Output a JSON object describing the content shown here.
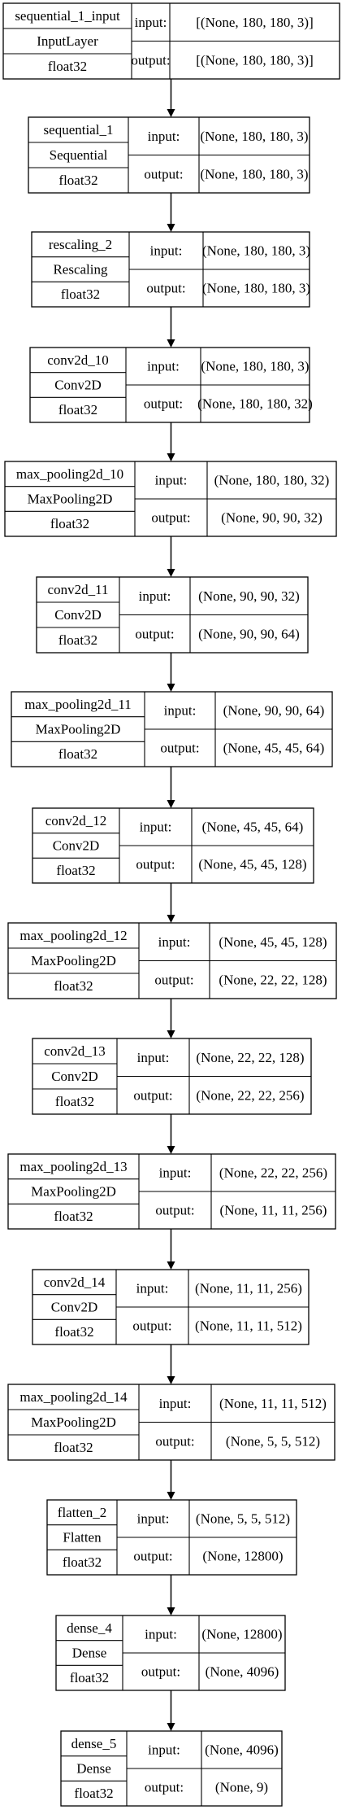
{
  "layers": [
    {
      "name": "sequential_1_input",
      "type": "InputLayer",
      "dtype": "float32",
      "input_label": "input:",
      "input": "[(None, 180, 180, 3)]",
      "output_label": "output:",
      "output": "[(None, 180, 180, 3)]"
    },
    {
      "name": "sequential_1",
      "type": "Sequential",
      "dtype": "float32",
      "input_label": "input:",
      "input": "(None, 180, 180, 3)",
      "output_label": "output:",
      "output": "(None, 180, 180, 3)"
    },
    {
      "name": "rescaling_2",
      "type": "Rescaling",
      "dtype": "float32",
      "input_label": "input:",
      "input": "(None, 180, 180, 3)",
      "output_label": "output:",
      "output": "(None, 180, 180, 3)"
    },
    {
      "name": "conv2d_10",
      "type": "Conv2D",
      "dtype": "float32",
      "input_label": "input:",
      "input": "(None, 180, 180, 3)",
      "output_label": "output:",
      "output": "(None, 180, 180, 32)"
    },
    {
      "name": "max_pooling2d_10",
      "type": "MaxPooling2D",
      "dtype": "float32",
      "input_label": "input:",
      "input": "(None, 180, 180, 32)",
      "output_label": "output:",
      "output": "(None, 90, 90, 32)"
    },
    {
      "name": "conv2d_11",
      "type": "Conv2D",
      "dtype": "float32",
      "input_label": "input:",
      "input": "(None, 90, 90, 32)",
      "output_label": "output:",
      "output": "(None, 90, 90, 64)"
    },
    {
      "name": "max_pooling2d_11",
      "type": "MaxPooling2D",
      "dtype": "float32",
      "input_label": "input:",
      "input": "(None, 90, 90, 64)",
      "output_label": "output:",
      "output": "(None, 45, 45, 64)"
    },
    {
      "name": "conv2d_12",
      "type": "Conv2D",
      "dtype": "float32",
      "input_label": "input:",
      "input": "(None, 45, 45, 64)",
      "output_label": "output:",
      "output": "(None, 45, 45, 128)"
    },
    {
      "name": "max_pooling2d_12",
      "type": "MaxPooling2D",
      "dtype": "float32",
      "input_label": "input:",
      "input": "(None, 45, 45, 128)",
      "output_label": "output:",
      "output": "(None, 22, 22, 128)"
    },
    {
      "name": "conv2d_13",
      "type": "Conv2D",
      "dtype": "float32",
      "input_label": "input:",
      "input": "(None, 22, 22, 128)",
      "output_label": "output:",
      "output": "(None, 22, 22, 256)"
    },
    {
      "name": "max_pooling2d_13",
      "type": "MaxPooling2D",
      "dtype": "float32",
      "input_label": "input:",
      "input": "(None, 22, 22, 256)",
      "output_label": "output:",
      "output": "(None, 11, 11, 256)"
    },
    {
      "name": "conv2d_14",
      "type": "Conv2D",
      "dtype": "float32",
      "input_label": "input:",
      "input": "(None, 11, 11, 256)",
      "output_label": "output:",
      "output": "(None, 11, 11, 512)"
    },
    {
      "name": "max_pooling2d_14",
      "type": "MaxPooling2D",
      "dtype": "float32",
      "input_label": "input:",
      "input": "(None, 11, 11, 512)",
      "output_label": "output:",
      "output": "(None, 5, 5, 512)"
    },
    {
      "name": "flatten_2",
      "type": "Flatten",
      "dtype": "float32",
      "input_label": "input:",
      "input": "(None, 5, 5, 512)",
      "output_label": "output:",
      "output": "(None, 12800)"
    },
    {
      "name": "dense_4",
      "type": "Dense",
      "dtype": "float32",
      "input_label": "input:",
      "input": "(None, 12800)",
      "output_label": "output:",
      "output": "(None, 4096)"
    },
    {
      "name": "dense_5",
      "type": "Dense",
      "dtype": "float32",
      "input_label": "input:",
      "input": "(None, 4096)",
      "output_label": "output:",
      "output": "(None, 9)"
    }
  ]
}
